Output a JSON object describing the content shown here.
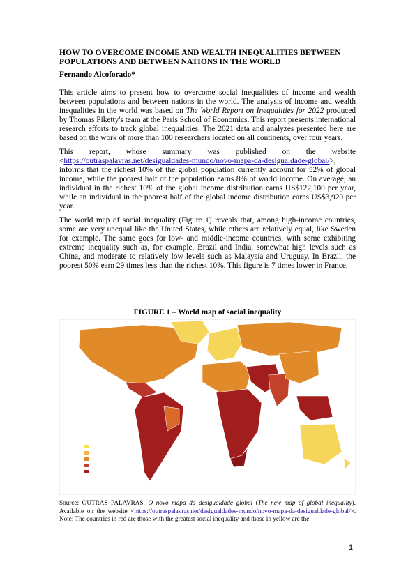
{
  "header": {
    "title": "HOW TO OVERCOME INCOME AND WEALTH INEQUALITIES BETWEEN POPULATIONS AND BETWEEN NATIONS IN THE WORLD",
    "author": "Fernando Alcoforado*"
  },
  "paragraphs": [
    [
      "This article aims to present how to overcome social inequalities of income and wealth between populations and between nations in the world. The analysis of income and wealth inequalities in the world was based on ",
      "The World Report on Inequalities for 2022",
      " produced by Thomas Piketty's team at the Paris School of Economics. This report presents international research efforts to track global inequalities. The 2021 data and analyzes presented here are based on the work of more than 100 researchers located on all continents, over four years."
    ],
    [
      "This report, whose summary was published on the website <",
      "https://outraspalavras.net/desigualdades-mundo/novo-mapa-da-desigualdade-global/",
      ">, informs that the richest 10% of the global population currently account for 52% of global income, while the poorest half of the population earns 8% of world income. On average, an individual in the richest 10% of the global income distribution earns US$122,100 per year, while an individual in the poorest half of the global income distribution earns US$3,920 per year."
    ],
    [
      "The world map of social inequality (Figure 1) reveals that, among high-income countries, some are very unequal like the United States, while others are relatively equal, like Sweden for example. The same goes for low- and middle-income countries, with some exhibiting extreme inequality such as, for example, Brazil and India, somewhat high levels such as China, and moderate to relatively low levels such as Malaysia and Uruguay. In Brazil, the poorest 50% earn 29 times less than the richest 10%. This figure is 7 times lower in France."
    ]
  ],
  "figure": {
    "title": "FIGURE 1 – World map of social inequality",
    "caption": [
      "Source: OUTRAS PALAVRAS. ",
      "O novo mapa da desigualdade global",
      " (",
      "The new map of global inequality",
      "). Available on the website <",
      "https://outraspalavras.net/desigualdades-mundo/novo-mapa-da-desigualdade-global/",
      ">. Note: The countries in red are those with the greatest social inequality and those in yellow are the"
    ]
  },
  "footer": {
    "page_number": "1"
  }
}
